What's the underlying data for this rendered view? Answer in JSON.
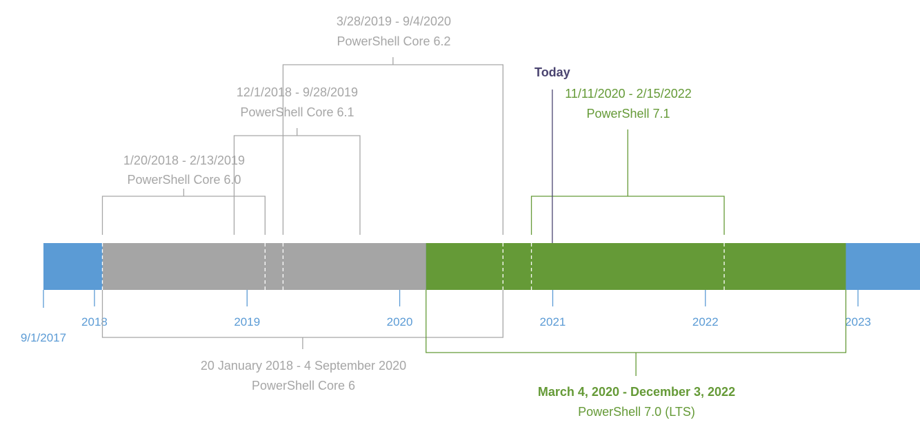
{
  "today_label": "Today",
  "start_label": "9/1/2017",
  "years": [
    {
      "label": "2018",
      "date": "2018-01-01"
    },
    {
      "label": "2019",
      "date": "2019-01-01"
    },
    {
      "label": "2020",
      "date": "2020-01-01"
    },
    {
      "label": "2021",
      "date": "2021-01-01"
    },
    {
      "label": "2022",
      "date": "2022-01-01"
    },
    {
      "label": "2023",
      "date": "2023-01-01"
    }
  ],
  "releases": [
    {
      "id": "ps6",
      "name": "PowerShell Core 6",
      "dates": "20 January 2018 - 4 September 2020",
      "start": "2018-01-20",
      "end": "2020-09-04"
    },
    {
      "id": "ps60",
      "name": "PowerShell Core 6.0",
      "dates": "1/20/2018 - 2/13/2019",
      "start": "2018-01-20",
      "end": "2019-02-13"
    },
    {
      "id": "ps61",
      "name": "PowerShell Core 6.1",
      "dates": "12/1/2018 - 9/28/2019",
      "start": "2018-12-01",
      "end": "2019-09-28"
    },
    {
      "id": "ps62",
      "name": "PowerShell Core 6.2",
      "dates": "3/28/2019 - 9/4/2020",
      "start": "2019-03-28",
      "end": "2020-09-04"
    },
    {
      "id": "ps70",
      "name": "PowerShell 7.0 (LTS)",
      "dates": "March 4, 2020 - December 3, 2022",
      "start": "2020-03-04",
      "end": "2022-12-03"
    },
    {
      "id": "ps71",
      "name": "PowerShell 7.1",
      "dates": "11/11/2020 - 2/15/2022",
      "start": "2020-11-11",
      "end": "2022-02-15"
    }
  ],
  "colors": {
    "axis_blue": "#5b9bd5",
    "gray_segment": "#a5a5a5",
    "green_segment": "#659a37",
    "gray_text": "#a6a6a6",
    "green_text": "#659a37",
    "today": "#4a4470"
  }
}
